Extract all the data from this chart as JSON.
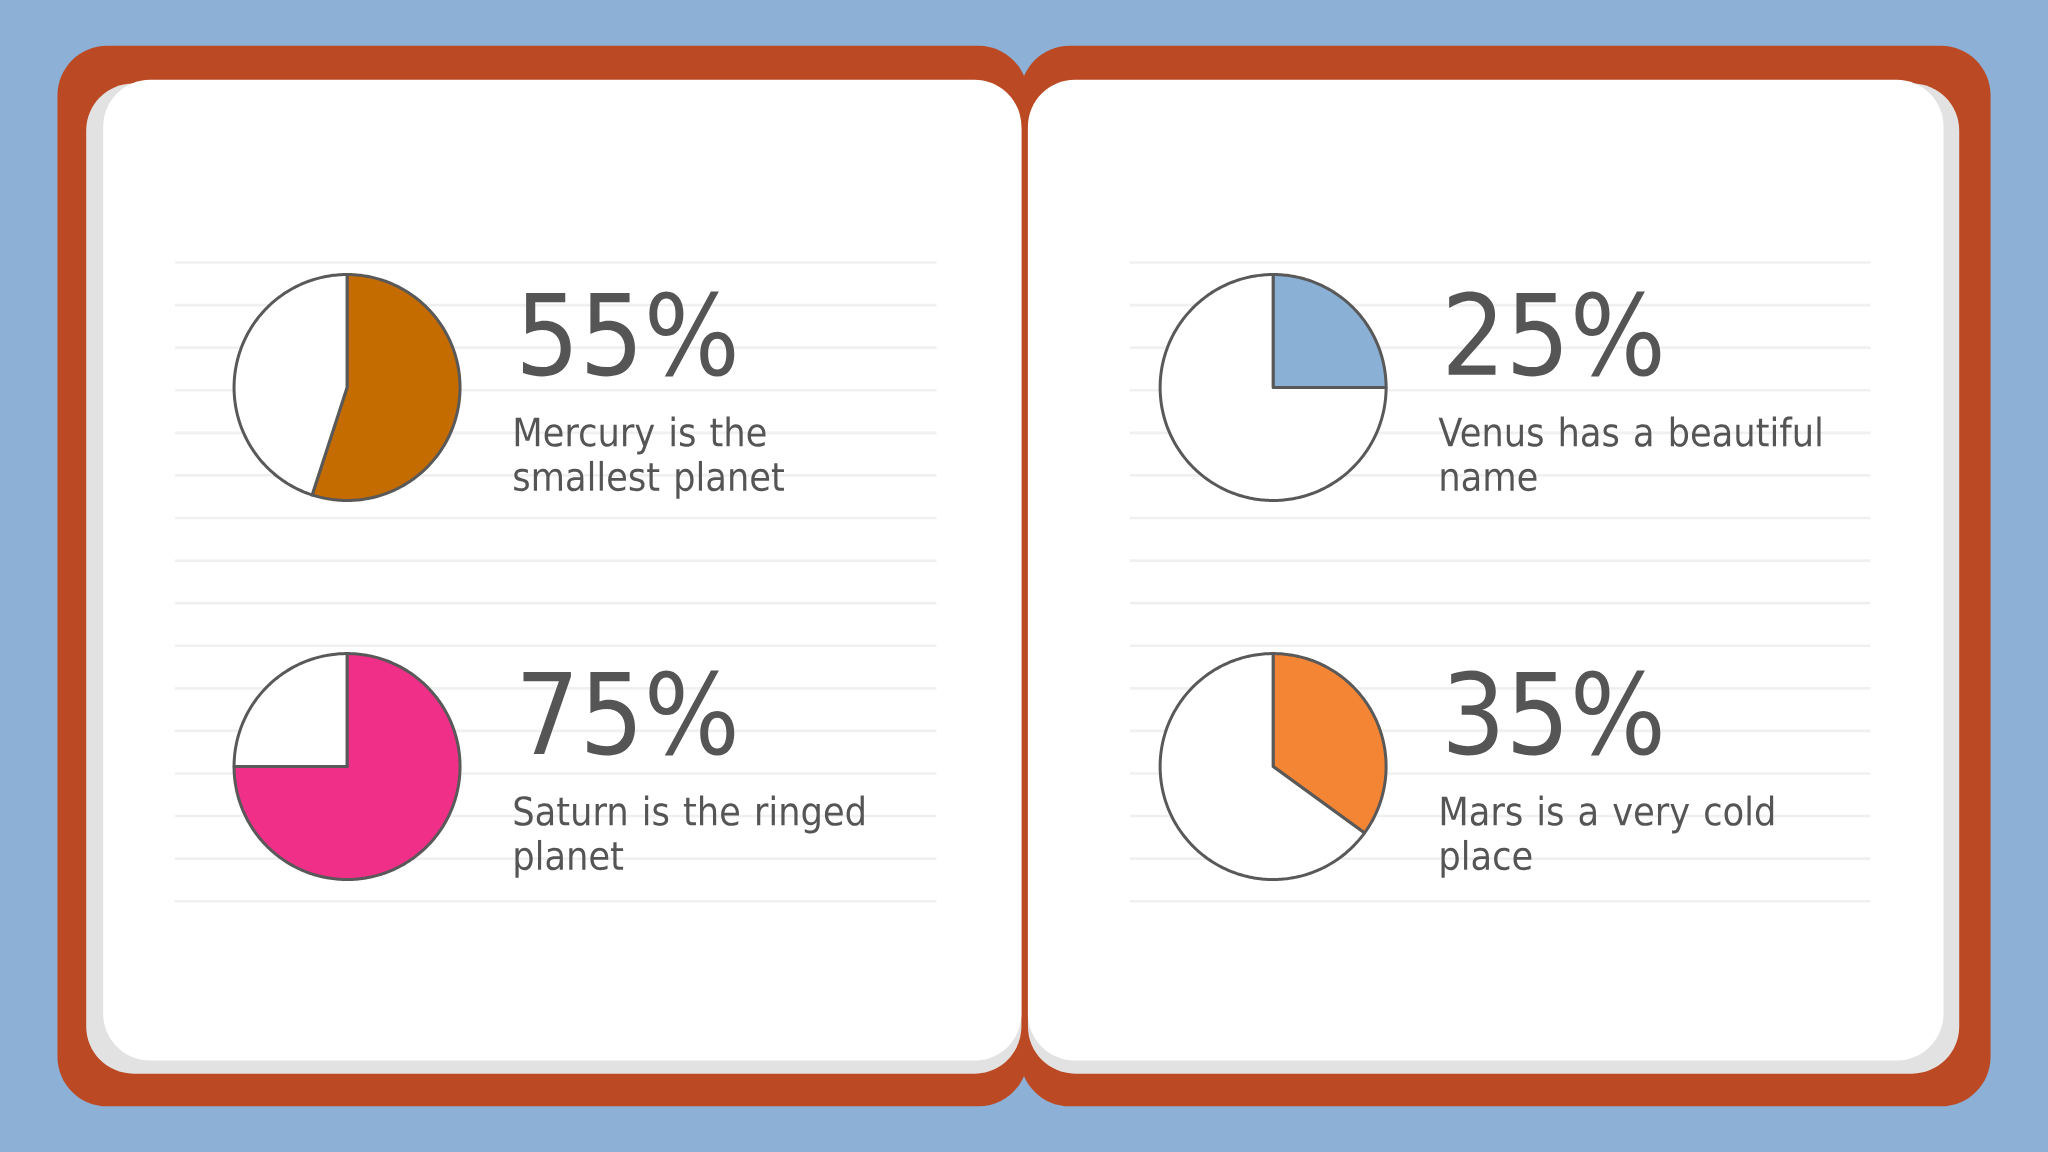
{
  "chart_data": [
    {
      "type": "pie",
      "categories": [
        null,
        null
      ],
      "values": [
        55,
        45
      ],
      "colors": [
        "#c46c00",
        "#ffffff"
      ],
      "value_labels": [
        "55%",
        null
      ],
      "annotations": [
        "Mercury is the smallest planet"
      ]
    },
    {
      "type": "pie",
      "categories": [
        null,
        null
      ],
      "values": [
        25,
        75
      ],
      "colors": [
        "#8ab0d6",
        "#ffffff"
      ],
      "value_labels": [
        "25%",
        null
      ],
      "annotations": [
        "Venus has a beautiful name"
      ]
    },
    {
      "type": "pie",
      "categories": [
        null,
        null
      ],
      "values": [
        75,
        25
      ],
      "colors": [
        "#f03088",
        "#ffffff"
      ],
      "value_labels": [
        "75%",
        null
      ],
      "annotations": [
        "Saturn is the ringed planet"
      ]
    },
    {
      "type": "pie",
      "categories": [
        null,
        null
      ],
      "values": [
        35,
        65
      ],
      "colors": [
        "#f48535",
        "#ffffff"
      ],
      "value_labels": [
        "35%",
        null
      ],
      "annotations": [
        "Mars is a very cold place"
      ]
    }
  ]
}
